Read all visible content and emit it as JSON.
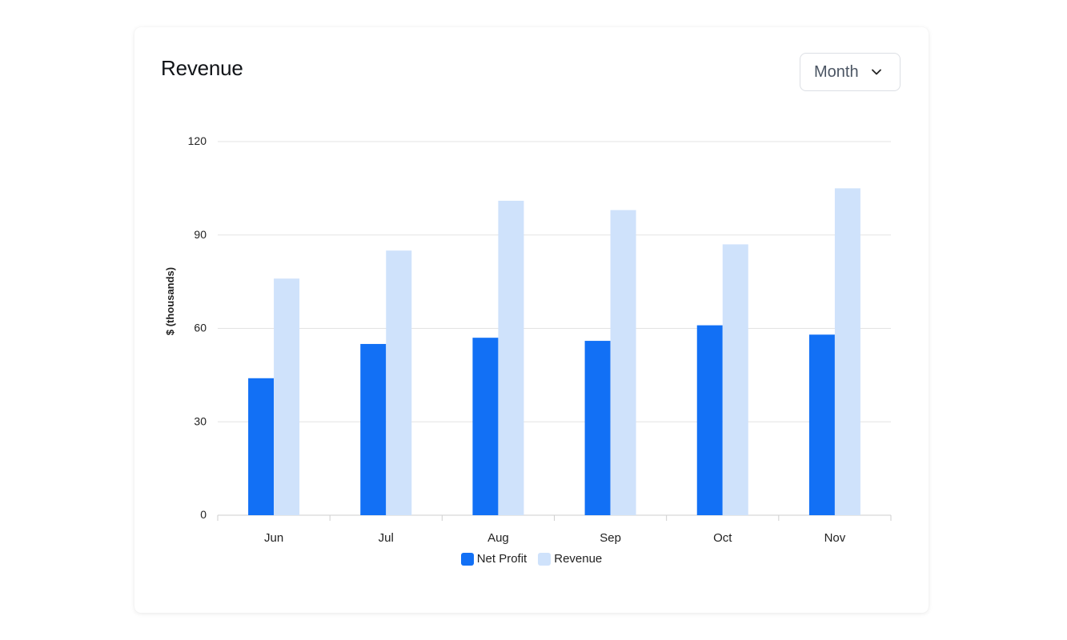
{
  "card": {
    "title": "Revenue"
  },
  "period_select": {
    "value": "Month",
    "icon": "chevron-down-icon"
  },
  "chart_data": {
    "type": "bar",
    "title": "",
    "xlabel": "",
    "ylabel": "$ (thousands)",
    "ylim": [
      0,
      120
    ],
    "yticks": [
      0,
      30,
      60,
      90,
      120
    ],
    "grid": true,
    "legend_position": "bottom",
    "categories": [
      "Jun",
      "Jul",
      "Aug",
      "Sep",
      "Oct",
      "Nov"
    ],
    "series": [
      {
        "name": "Net Profit",
        "color": "#1270f5",
        "values": [
          44,
          55,
          57,
          56,
          61,
          58
        ]
      },
      {
        "name": "Revenue",
        "color": "#cfe2fb",
        "values": [
          76,
          85,
          101,
          98,
          87,
          105
        ]
      }
    ]
  }
}
